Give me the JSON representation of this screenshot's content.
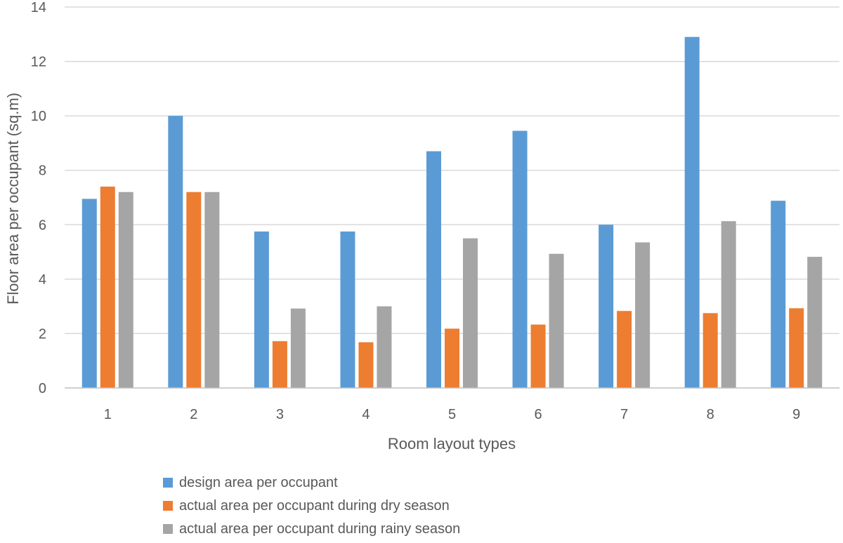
{
  "chart_data": {
    "type": "bar",
    "title": "",
    "xlabel": "Room layout types",
    "ylabel": "Floor area per occupant (sq.m)",
    "categories": [
      "1",
      "2",
      "3",
      "4",
      "5",
      "6",
      "7",
      "8",
      "9"
    ],
    "ylim": [
      0,
      14
    ],
    "yticks": [
      0,
      2,
      4,
      6,
      8,
      10,
      12,
      14
    ],
    "grid": true,
    "legend_position": "bottom",
    "series": [
      {
        "name": "design area per occupant",
        "color": "#5b9bd5",
        "values": [
          6.95,
          10.0,
          5.75,
          5.75,
          8.7,
          9.45,
          6.0,
          12.9,
          6.88
        ]
      },
      {
        "name": "actual area per occupant during dry season",
        "color": "#ed7d31",
        "values": [
          7.4,
          7.2,
          1.72,
          1.68,
          2.18,
          2.33,
          2.83,
          2.75,
          2.93
        ]
      },
      {
        "name": "actual area per occupant during rainy season",
        "color": "#a5a5a5",
        "values": [
          7.2,
          7.2,
          2.92,
          3.0,
          5.5,
          4.93,
          5.35,
          6.13,
          4.82
        ]
      }
    ]
  }
}
